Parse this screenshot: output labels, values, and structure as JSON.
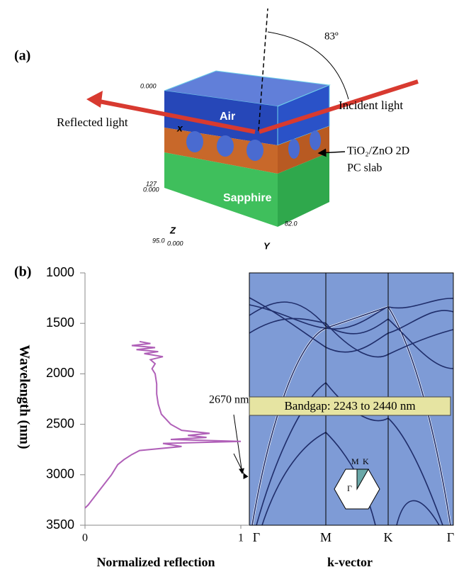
{
  "panel_a": {
    "label": "(a)",
    "angle": "83º",
    "air": "Air",
    "sapphire": "Sapphire",
    "reflected": "Reflected light",
    "incident": "Incident light",
    "slab_line1": "TiO₂/ZnO 2D",
    "slab_line2": "PC slab",
    "axis_x": "x",
    "axis_y": "Y",
    "axis_z": "Z",
    "coord_top": "0.000",
    "coord_z_max": "127",
    "coord_z_zero": "0.000",
    "coord_x_max": "95.0",
    "coord_origin": "0.000",
    "coord_y_max": "82.0"
  },
  "chart_data": {
    "type": "line",
    "label": "(b)",
    "ylabel": "Wavelength (nm)",
    "xlabel": "Normalized reflection",
    "ylim": [
      1000,
      3500
    ],
    "y_inverted": true,
    "yticks": [
      1000,
      1500,
      2000,
      2500,
      3000,
      3500
    ],
    "xlim": [
      0,
      1
    ],
    "xticks": [
      0,
      1
    ],
    "series": [
      {
        "color": "#b060b8",
        "wavelength": [
          1680,
          1700,
          1720,
          1740,
          1760,
          1780,
          1800,
          1830,
          1860,
          1900,
          1950,
          2000,
          2100,
          2200,
          2300,
          2400,
          2500,
          2560,
          2590,
          2610,
          2630,
          2650,
          2670,
          2690,
          2720,
          2760,
          2800,
          2850,
          2900,
          3000,
          3100,
          3200,
          3300,
          3330
        ],
        "reflection": [
          0.35,
          0.42,
          0.3,
          0.45,
          0.33,
          0.47,
          0.38,
          0.5,
          0.42,
          0.45,
          0.43,
          0.45,
          0.46,
          0.46,
          0.47,
          0.49,
          0.55,
          0.62,
          0.8,
          0.66,
          0.78,
          0.55,
          1.0,
          0.5,
          0.62,
          0.35,
          0.3,
          0.25,
          0.21,
          0.17,
          0.12,
          0.07,
          0.02,
          0.0
        ]
      }
    ],
    "annotation": "2670 nm",
    "band": {
      "categories": [
        "Γ",
        "M",
        "K",
        "Γ"
      ],
      "xlabel": "k-vector",
      "bandgap": "Bandgap: 2243 to 2440 nm",
      "inset_labels": [
        "M",
        "K",
        "Γ"
      ]
    }
  }
}
